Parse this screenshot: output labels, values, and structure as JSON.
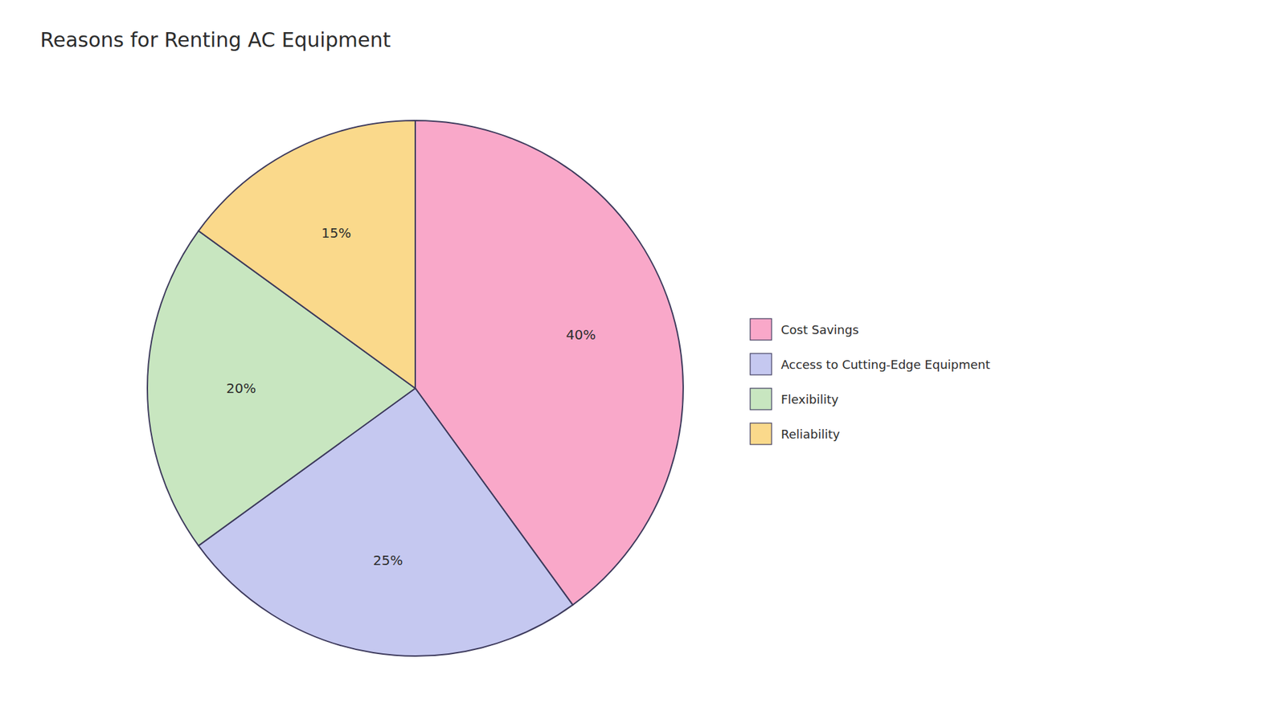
{
  "chart_data": {
    "type": "pie",
    "title": "Reasons for Renting AC Equipment",
    "categories": [
      "Cost Savings",
      "Access to Cutting-Edge Equipment",
      "Flexibility",
      "Reliability"
    ],
    "values": [
      40,
      25,
      20,
      15
    ],
    "value_labels": [
      "40%",
      "25%",
      "20%",
      "15%"
    ],
    "colors": [
      "#F9A8C9",
      "#C5C8F0",
      "#C8E6C0",
      "#FAD98B"
    ],
    "data_labels": true,
    "legend": "right"
  }
}
